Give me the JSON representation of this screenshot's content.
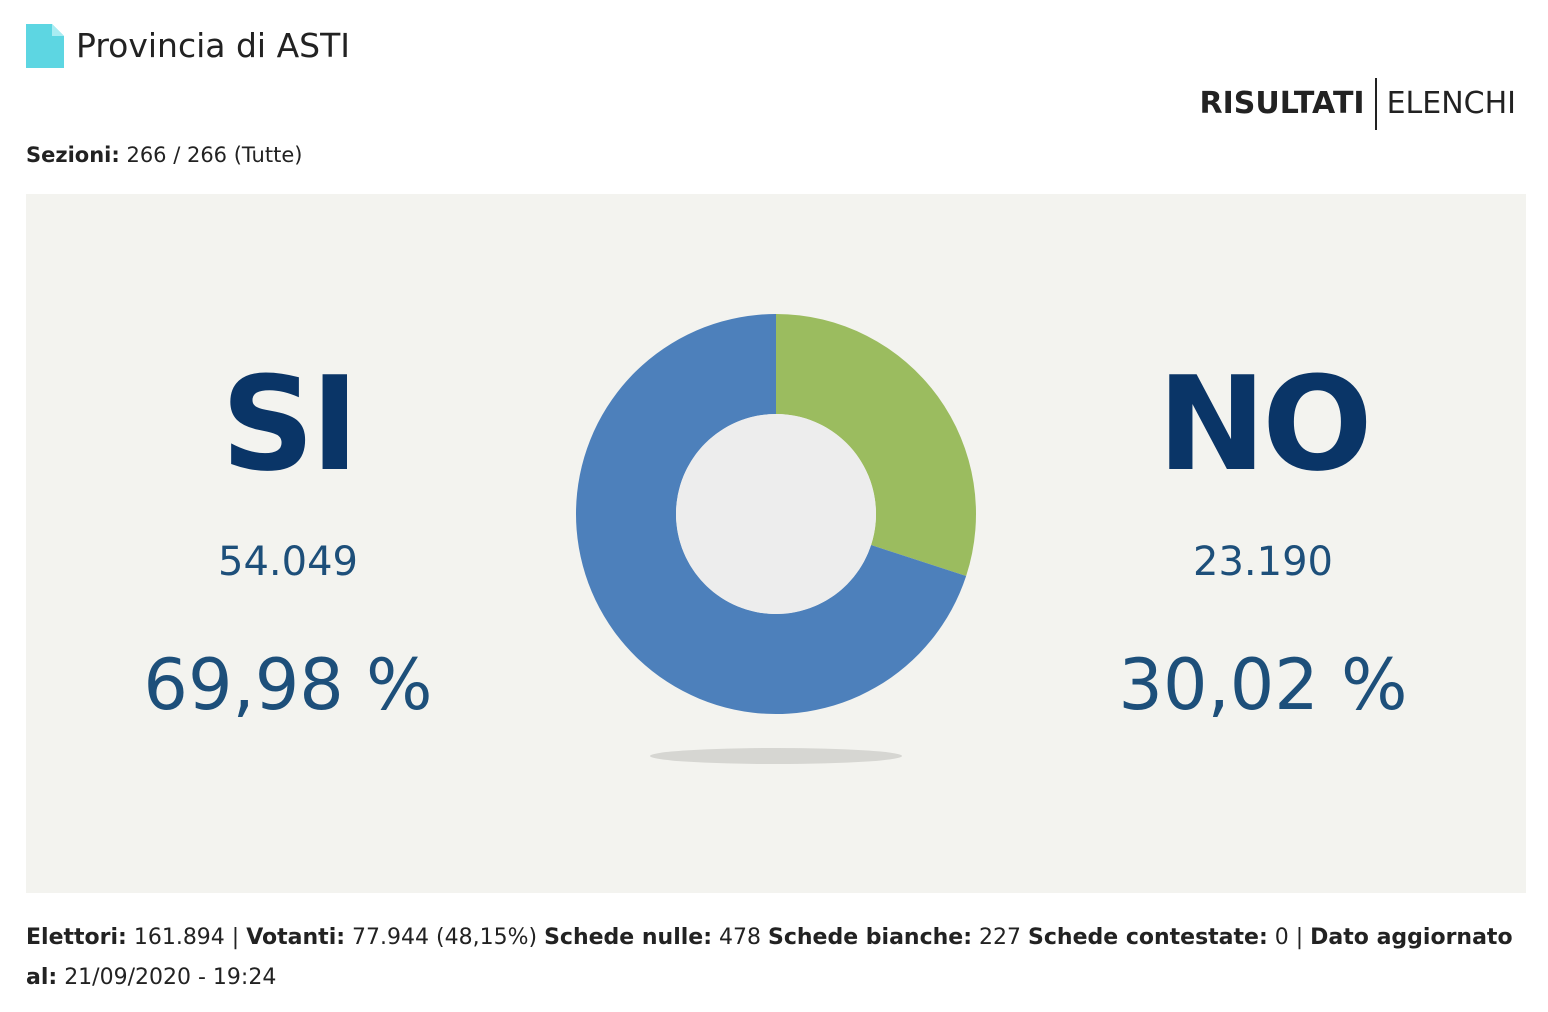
{
  "header": {
    "title": "Provincia di ASTI",
    "nav": [
      "RISULTATI",
      "ELENCHI"
    ]
  },
  "sezioni": {
    "label": "Sezioni:",
    "value": "266 / 266 (Tutte)"
  },
  "results": [
    {
      "label": "SI",
      "votes": "54.049",
      "percent": {
        "value": 69.98,
        "label": "69,98 %"
      },
      "color": "#4d80bb"
    },
    {
      "label": "NO",
      "votes": "23.190",
      "percent": {
        "value": 30.02,
        "label": "30,02 %"
      },
      "color": "#9bbc5f"
    }
  ],
  "footer": [
    {
      "label": "Elettori:",
      "value": "161.894 |"
    },
    {
      "label": "Votanti:",
      "value": "77.944 (48,15%)"
    },
    {
      "label": "Schede nulle:",
      "value": "478"
    },
    {
      "label": "Schede bianche:",
      "value": "227"
    },
    {
      "label": "Schede contestate:",
      "value": "0 |"
    },
    {
      "label": "Dato aggiornato al:",
      "value": "21/09/2020 - 19:24"
    }
  ]
}
